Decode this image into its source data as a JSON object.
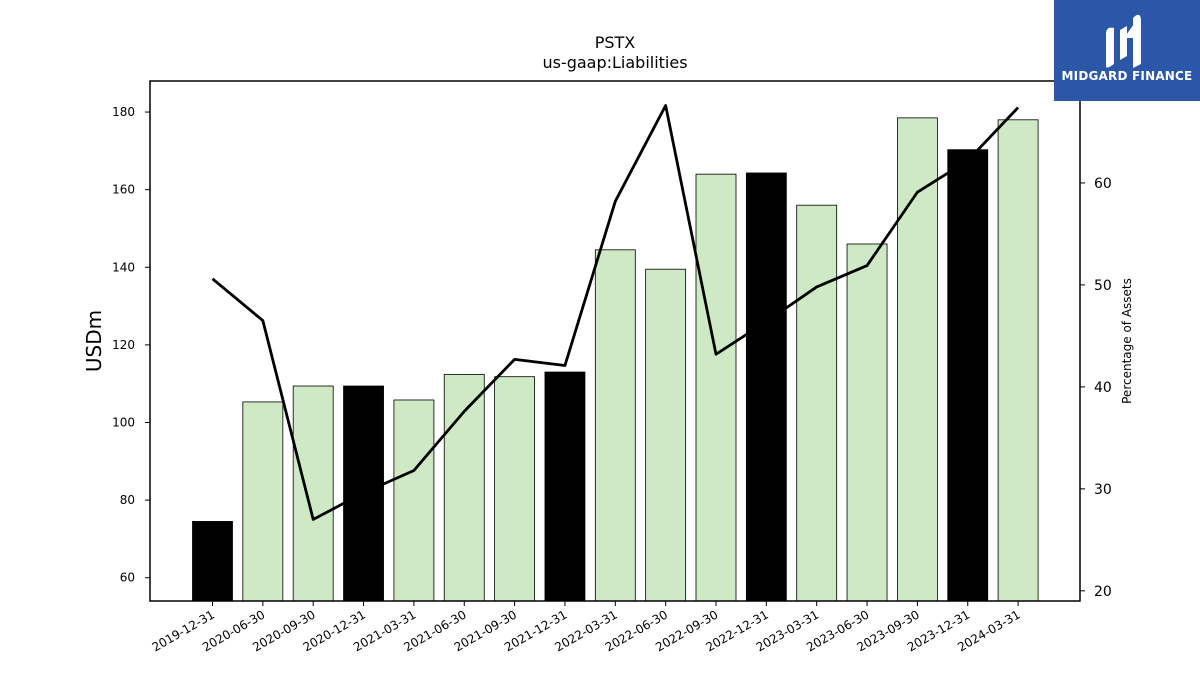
{
  "brand": {
    "name": "MIDGARD FINANCE",
    "icon": "midgard-logo-icon",
    "bg_color": "#2b57a8"
  },
  "chart_data": {
    "type": "bar",
    "title": "PSTX",
    "subtitle": "us-gaap:Liabilities",
    "ylabel": "USDm",
    "y2label": "Percentage of Assets",
    "ylim": [
      54,
      188
    ],
    "y2lim": [
      19,
      70
    ],
    "yticks": [
      60,
      80,
      100,
      120,
      140,
      160,
      180
    ],
    "y2ticks": [
      20,
      30,
      40,
      50,
      60
    ],
    "categories": [
      "2019-12-31",
      "2020-06-30",
      "2020-09-30",
      "2020-12-31",
      "2021-03-31",
      "2021-06-30",
      "2021-09-30",
      "2021-12-31",
      "2022-03-31",
      "2022-06-30",
      "2022-09-30",
      "2022-12-31",
      "2023-03-31",
      "2023-06-30",
      "2023-09-30",
      "2023-12-31",
      "2024-03-31"
    ],
    "series": [
      {
        "kind": "bar",
        "values": [
          74.5,
          105.3,
          109.4,
          109.4,
          105.8,
          112.4,
          111.8,
          113.0,
          144.5,
          139.5,
          164.0,
          164.3,
          156.0,
          146.0,
          178.5,
          170.3,
          178.0
        ],
        "colors": [
          "#000000",
          "#cdeac5",
          "#cdeac5",
          "#000000",
          "#cdeac5",
          "#cdeac5",
          "#cdeac5",
          "#000000",
          "#cdeac5",
          "#cdeac5",
          "#cdeac5",
          "#000000",
          "#cdeac5",
          "#cdeac5",
          "#cdeac5",
          "#000000",
          "#cdeac5"
        ]
      },
      {
        "kind": "line",
        "axis": "right",
        "color": "#000000",
        "values": [
          50.6,
          46.5,
          27.0,
          29.6,
          31.8,
          37.6,
          42.7,
          42.1,
          58.2,
          67.6,
          43.2,
          46.4,
          49.8,
          51.9,
          59.1,
          62.2,
          67.4
        ]
      }
    ]
  }
}
